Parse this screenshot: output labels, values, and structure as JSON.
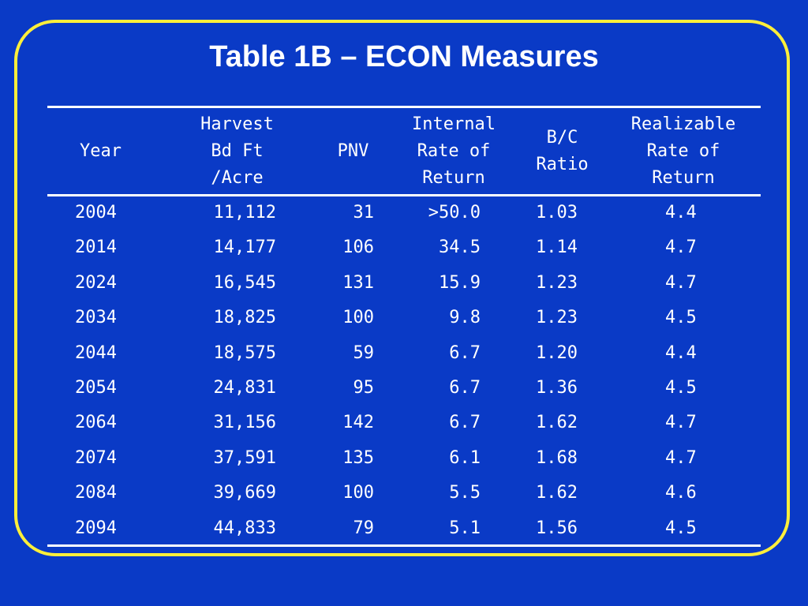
{
  "title": "Table 1B – ECON Measures",
  "columns": [
    "Year",
    "Harvest\nBd Ft\n/Acre",
    "PNV",
    "Internal\nRate of\nReturn",
    "B/C\nRatio",
    "Realizable\nRate of\nReturn"
  ],
  "rows": [
    [
      "2004",
      "11,112",
      "31",
      ">50.0",
      "1.03",
      "4.4"
    ],
    [
      "2014",
      "14,177",
      "106",
      "34.5",
      "1.14",
      "4.7"
    ],
    [
      "2024",
      "16,545",
      "131",
      "15.9",
      "1.23",
      "4.7"
    ],
    [
      "2034",
      "18,825",
      "100",
      "9.8",
      "1.23",
      "4.5"
    ],
    [
      "2044",
      "18,575",
      "59",
      "6.7",
      "1.20",
      "4.4"
    ],
    [
      "2054",
      "24,831",
      "95",
      "6.7",
      "1.36",
      "4.5"
    ],
    [
      "2064",
      "31,156",
      "142",
      "6.7",
      "1.62",
      "4.7"
    ],
    [
      "2074",
      "37,591",
      "135",
      "6.1",
      "1.68",
      "4.7"
    ],
    [
      "2084",
      "39,669",
      "100",
      "5.5",
      "1.62",
      "4.6"
    ],
    [
      "2094",
      "44,833",
      "79",
      "5.1",
      "1.56",
      "4.5"
    ]
  ],
  "colors": {
    "background": "#0a3ac6",
    "frame": "#ffef3a",
    "text": "#ffffff"
  }
}
